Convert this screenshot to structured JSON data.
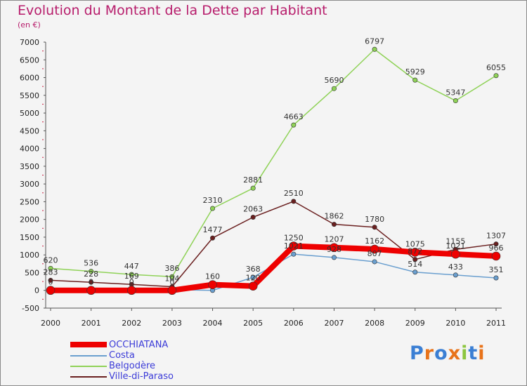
{
  "title": "Evolution du Montant de la Dette par Habitant",
  "subtitle": "(en €)",
  "logo": "Proxiti",
  "chart_data": {
    "type": "line",
    "x": [
      "2000",
      "2001",
      "2002",
      "2003",
      "2004",
      "2005",
      "2006",
      "2007",
      "2008",
      "2009",
      "2010",
      "2011"
    ],
    "ylim": [
      -500,
      7000
    ],
    "yticks": [
      -500,
      0,
      500,
      1000,
      1500,
      2000,
      2500,
      3000,
      3500,
      4000,
      4500,
      5000,
      5500,
      6000,
      6500,
      7000
    ],
    "grid": false,
    "legend_position": "bottom-left",
    "series": [
      {
        "name": "OCCHIATANA",
        "color": "#ee0000",
        "values": [
          0,
          0,
          0,
          0,
          160,
          120,
          1250,
          1207,
          1162,
          1075,
          1021,
          966
        ],
        "labels": [
          "0",
          "0",
          "0",
          "0",
          "160",
          "120",
          "1250",
          "1207",
          "1162",
          "1075",
          "1021",
          "966"
        ]
      },
      {
        "name": "Costa",
        "color": "#6a9fcf",
        "values": [
          50,
          40,
          30,
          20,
          0,
          368,
          1021,
          928,
          807,
          514,
          433,
          351
        ],
        "labels": [
          "",
          "",
          "",
          "",
          "",
          "368",
          "1021",
          "928",
          "807",
          "514",
          "433",
          "351"
        ]
      },
      {
        "name": "Belgodère",
        "color": "#8fd257",
        "values": [
          620,
          536,
          447,
          386,
          2310,
          2881,
          4663,
          5690,
          6797,
          5929,
          5347,
          6055
        ],
        "labels": [
          "620",
          "536",
          "447",
          "386",
          "2310",
          "2881",
          "4663",
          "5690",
          "6797",
          "5929",
          "5347",
          "6055"
        ]
      },
      {
        "name": "Ville-di-Paraso",
        "color": "#6a1f1f",
        "values": [
          283,
          228,
          169,
          104,
          1477,
          2063,
          2510,
          1862,
          1780,
          872,
          1155,
          1307
        ],
        "labels": [
          "283",
          "228",
          "169",
          "104",
          "1477",
          "2063",
          "2510",
          "1862",
          "1780",
          "872",
          "1155",
          "1307"
        ]
      }
    ]
  }
}
